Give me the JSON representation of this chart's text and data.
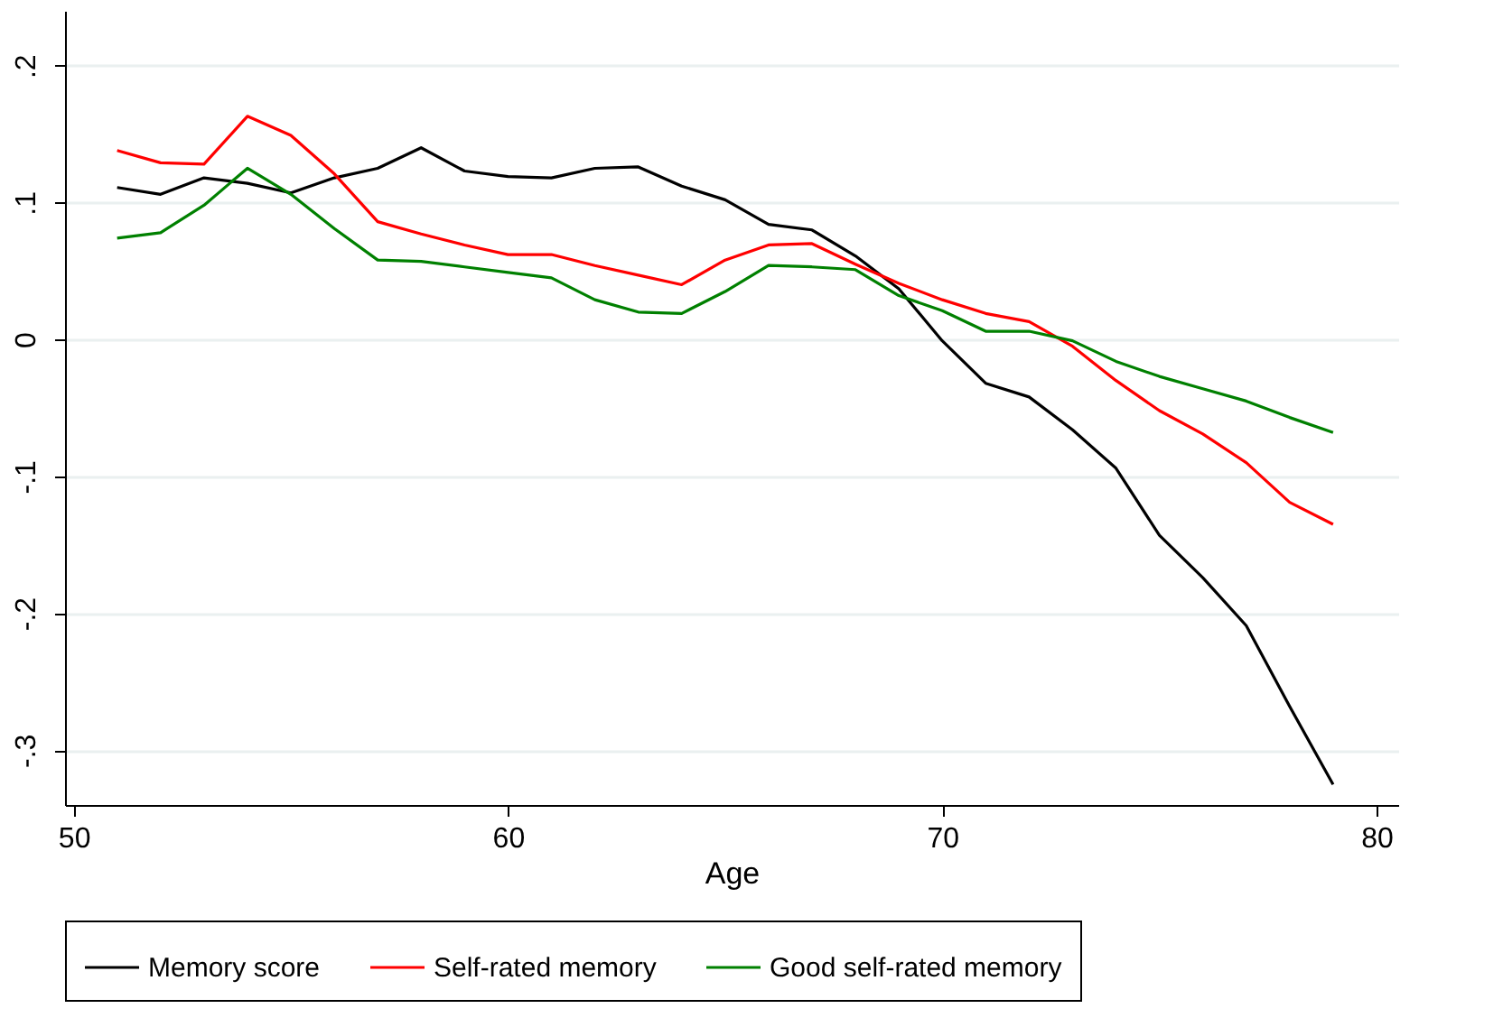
{
  "chart_data": {
    "type": "line",
    "xlabel": "Age",
    "x": [
      51,
      52,
      53,
      54,
      55,
      56,
      57,
      58,
      59,
      60,
      61,
      62,
      63,
      64,
      65,
      66,
      67,
      68,
      69,
      70,
      71,
      72,
      73,
      74,
      75,
      76,
      77,
      78,
      79
    ],
    "series": [
      {
        "name": "Memory score",
        "color": "#000000",
        "values": [
          0.111,
          0.106,
          0.118,
          0.114,
          0.107,
          0.118,
          0.125,
          0.14,
          0.123,
          0.119,
          0.118,
          0.125,
          0.126,
          0.112,
          0.102,
          0.084,
          0.08,
          0.061,
          0.037,
          -0.001,
          -0.032,
          -0.042,
          -0.066,
          -0.094,
          -0.143,
          -0.174,
          -0.209,
          -0.268,
          -0.325
        ]
      },
      {
        "name": "Self-rated memory",
        "color": "#ff0000",
        "values": [
          0.138,
          0.129,
          0.128,
          0.163,
          0.149,
          0.121,
          0.086,
          0.077,
          0.069,
          0.062,
          0.062,
          0.054,
          0.047,
          0.04,
          0.058,
          0.069,
          0.07,
          0.055,
          0.041,
          0.029,
          0.019,
          0.013,
          -0.005,
          -0.03,
          -0.052,
          -0.069,
          -0.09,
          -0.119,
          -0.135
        ]
      },
      {
        "name": "Good self-rated memory",
        "color": "#008000",
        "values": [
          0.074,
          0.078,
          0.098,
          0.125,
          0.106,
          0.081,
          0.058,
          0.057,
          0.053,
          0.049,
          0.045,
          0.029,
          0.02,
          0.019,
          0.035,
          0.054,
          0.053,
          0.051,
          0.032,
          0.021,
          0.006,
          0.006,
          -0.001,
          -0.016,
          -0.027,
          -0.036,
          -0.045,
          -0.057,
          -0.068
        ]
      }
    ],
    "xlim": [
      49.8,
      80.5
    ],
    "xticks": [
      50,
      60,
      70,
      80
    ],
    "ylim": [
      -0.34,
      0.24
    ],
    "yticks": [
      {
        "value": -0.3,
        "label": "-.3"
      },
      {
        "value": -0.2,
        "label": "-.2"
      },
      {
        "value": -0.1,
        "label": "-.1"
      },
      {
        "value": 0,
        "label": "0"
      },
      {
        "value": 0.1,
        "label": ".1"
      },
      {
        "value": 0.2,
        "label": ".2"
      }
    ],
    "grid": "y",
    "legend": "bottom",
    "marker": "none",
    "line_style": "solid"
  }
}
